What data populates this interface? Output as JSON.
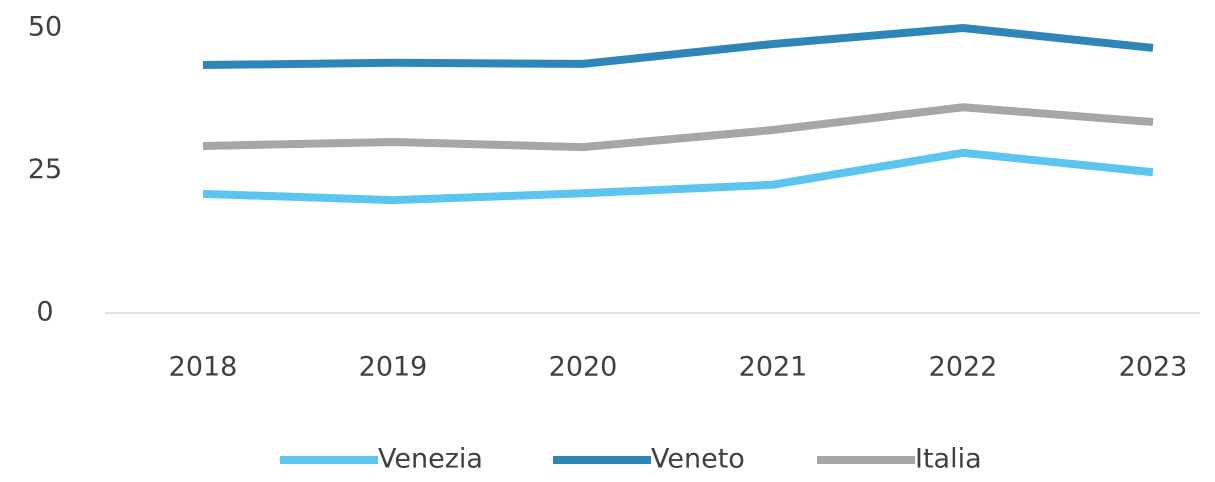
{
  "chart_data": {
    "type": "line",
    "categories": [
      "2018",
      "2019",
      "2020",
      "2021",
      "2022",
      "2023"
    ],
    "series": [
      {
        "name": "Venezia",
        "color": "#5bc4ef",
        "values": [
          20.9,
          19.8,
          21.0,
          22.5,
          28.1,
          24.7
        ]
      },
      {
        "name": "Veneto",
        "color": "#2e86b8",
        "values": [
          43.5,
          43.9,
          43.7,
          47.2,
          50.0,
          46.5
        ]
      },
      {
        "name": "Italia",
        "color": "#a6a6a6",
        "values": [
          29.3,
          30.0,
          29.1,
          32.1,
          36.1,
          33.5
        ]
      }
    ],
    "ylim": [
      0,
      50
    ],
    "yticks": [
      0,
      25,
      50
    ],
    "grid": false,
    "legend": "bottom"
  }
}
